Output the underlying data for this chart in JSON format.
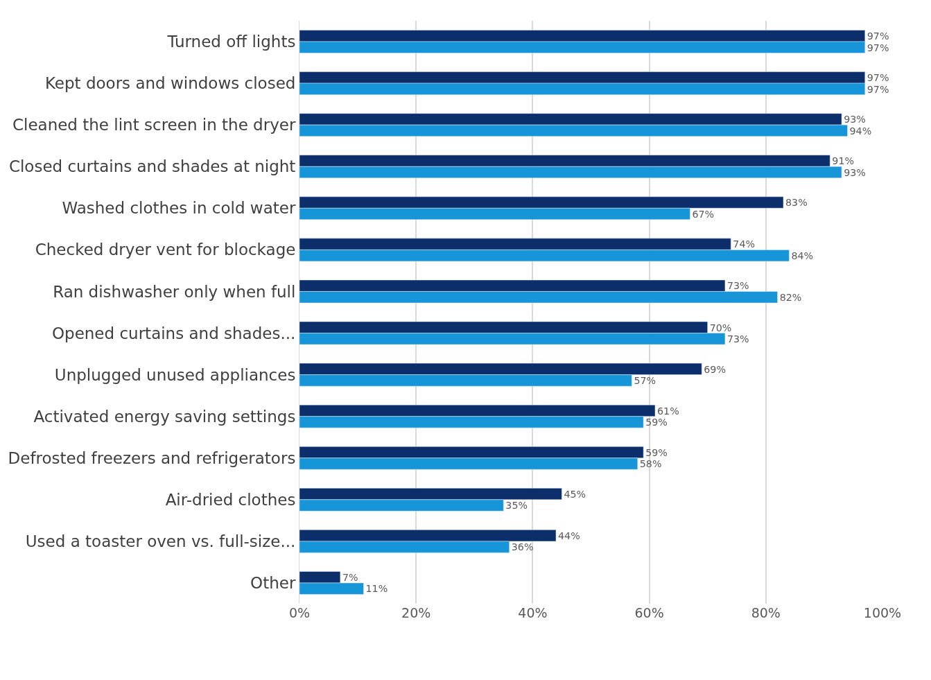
{
  "chart_data": {
    "type": "bar",
    "orientation": "horizontal",
    "categories": [
      "Turned off lights",
      "Kept doors and windows closed",
      "Cleaned the lint screen in the dryer",
      "Closed curtains and shades at night",
      "Washed clothes in cold water",
      "Checked dryer vent for blockage",
      "Ran dishwasher only when full",
      "Opened curtains and shades...",
      "Unplugged unused appliances",
      "Activated energy saving settings",
      "Defrosted freezers and refrigerators",
      "Air-dried clothes",
      "Used a toaster oven vs. full-size...",
      "Other"
    ],
    "series": [
      {
        "color": "#0c2f6b",
        "values": [
          97,
          97,
          93,
          91,
          83,
          74,
          73,
          70,
          69,
          61,
          59,
          45,
          44,
          7
        ],
        "value_labels": [
          "97%",
          "97%",
          "93%",
          "91%",
          "83%",
          "74%",
          "73%",
          "70%",
          "69%",
          "61%",
          "59%",
          "45%",
          "44%",
          "7%"
        ]
      },
      {
        "color": "#1696d9",
        "values": [
          97,
          97,
          94,
          93,
          67,
          84,
          82,
          73,
          57,
          59,
          58,
          35,
          36,
          11
        ],
        "value_labels": [
          "97%",
          "97%",
          "94%",
          "93%",
          "67%",
          "84%",
          "82%",
          "73%",
          "57%",
          "59%",
          "58%",
          "35%",
          "36%",
          "11%"
        ]
      }
    ],
    "xlim": [
      0,
      100
    ],
    "xticks": [
      {
        "value": 0,
        "label": "0%"
      },
      {
        "value": 20,
        "label": "20%"
      },
      {
        "value": 40,
        "label": "40%"
      },
      {
        "value": 60,
        "label": "60%"
      },
      {
        "value": 80,
        "label": "80%"
      },
      {
        "value": 100,
        "label": "100%"
      }
    ],
    "grid": "x"
  }
}
